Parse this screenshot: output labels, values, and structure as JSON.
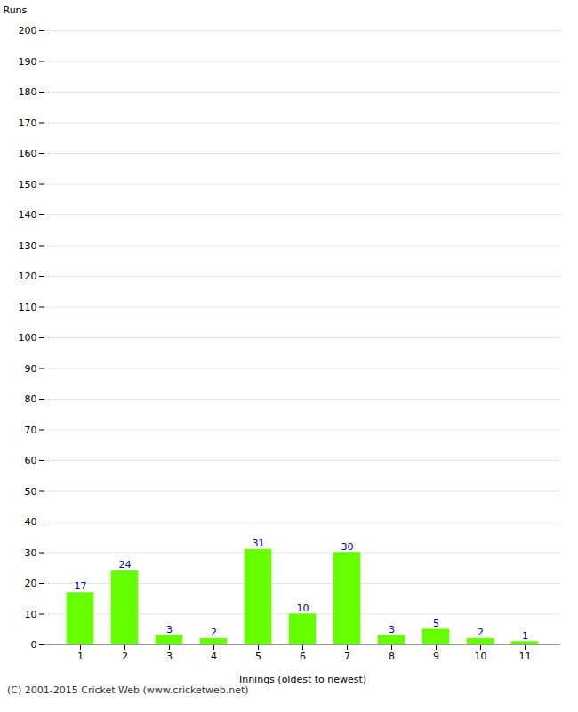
{
  "chart_data": {
    "type": "bar",
    "categories": [
      "1",
      "2",
      "3",
      "4",
      "5",
      "6",
      "7",
      "8",
      "9",
      "10",
      "11"
    ],
    "values": [
      17,
      24,
      3,
      2,
      31,
      10,
      30,
      3,
      5,
      2,
      1
    ],
    "color": "#66ff00",
    "xlabel": "Innings (oldest to newest)",
    "ylabel": "Runs",
    "ylim": [
      0,
      200
    ],
    "yticks": [
      0,
      10,
      20,
      30,
      40,
      50,
      60,
      70,
      80,
      90,
      100,
      110,
      120,
      130,
      140,
      150,
      160,
      170,
      180,
      190,
      200
    ],
    "grid": true,
    "data_labels": true,
    "caption": "(C) 2001-2015 Cricket Web (www.cricketweb.net)"
  }
}
